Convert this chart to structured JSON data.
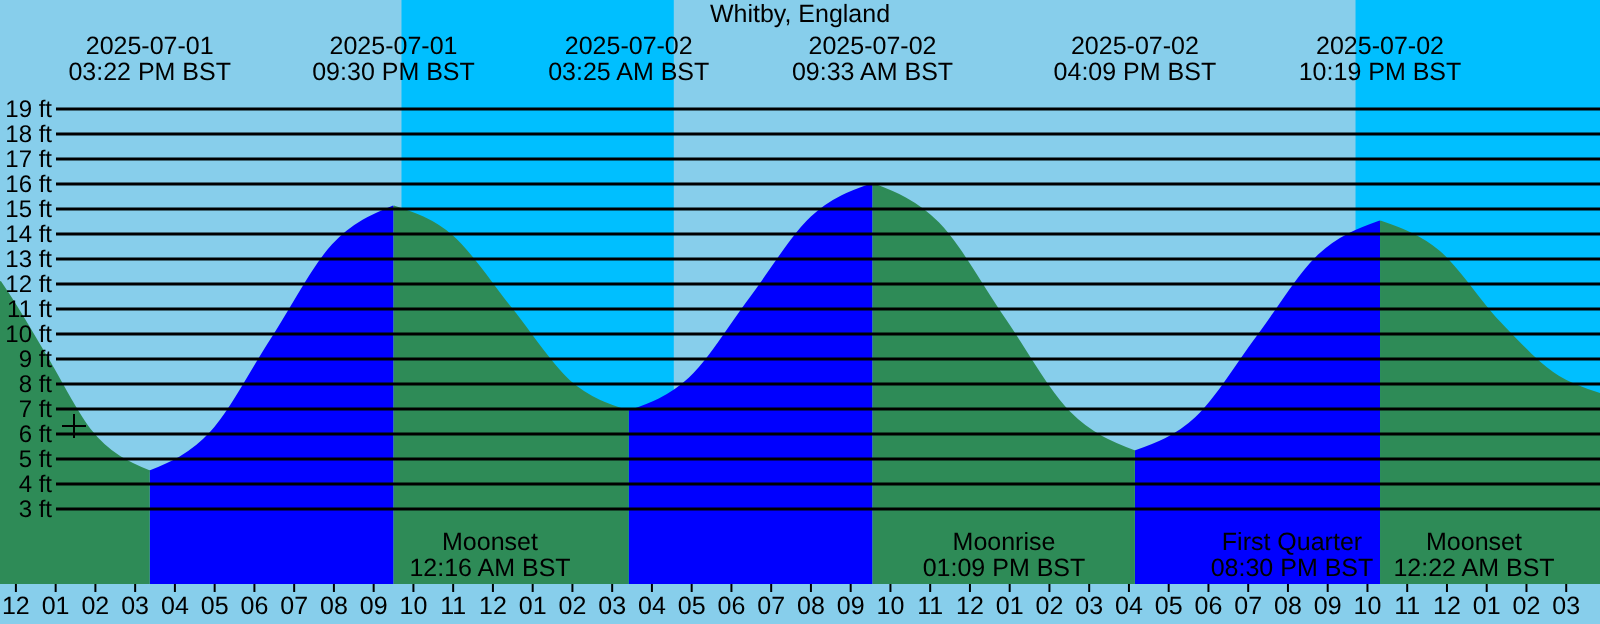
{
  "chart_data": {
    "type": "area",
    "title": "Whitby, England",
    "x": [
      "2025-07-01T11:36",
      "2025-07-01T11:51",
      "2025-07-01T12:48",
      "2025-07-01T13:51",
      "2025-07-01T15:22",
      "2025-07-01T16:54",
      "2025-07-01T18:26",
      "2025-07-01T19:58",
      "2025-07-01T21:30",
      "2025-07-01T22:59",
      "2025-07-02T00:28",
      "2025-07-02T01:56",
      "2025-07-02T03:25",
      "2025-07-02T04:57",
      "2025-07-02T06:29",
      "2025-07-02T08:01",
      "2025-07-02T09:33",
      "2025-07-02T11:12",
      "2025-07-02T12:51",
      "2025-07-02T14:30",
      "2025-07-02T16:09",
      "2025-07-02T17:41",
      "2025-07-02T19:14",
      "2025-07-02T20:47",
      "2025-07-02T22:19",
      "2025-07-02T23:48",
      "2025-07-03T01:18",
      "2025-07-03T02:48",
      "2025-07-03T03:51"
    ],
    "series": [
      {
        "color": "#0000ff",
        "values": [
          null,
          null,
          null,
          null,
          4.5,
          6.05,
          9.8,
          13.55,
          15.1,
          null,
          null,
          null,
          6.9,
          8.23,
          11.45,
          14.67,
          16.0,
          null,
          null,
          null,
          5.3,
          6.64,
          9.9,
          13.16,
          14.5,
          null,
          null,
          null,
          null
        ]
      },
      {
        "color": "#2e8b57",
        "values": [
          12.1,
          11.5,
          9.0,
          6.2,
          4.5,
          null,
          null,
          null,
          15.1,
          13.9,
          11.0,
          8.1,
          6.9,
          null,
          null,
          null,
          16.0,
          14.44,
          10.65,
          6.87,
          5.3,
          null,
          null,
          null,
          14.5,
          13.3,
          10.5,
          8.3,
          7.6
        ]
      }
    ],
    "xlim": [
      "2025-07-01T11:36",
      "2025-07-03T03:51"
    ],
    "xticks": [
      {
        "value": "2025-07-01T12:00",
        "label": "12"
      },
      {
        "value": "2025-07-01T13:00",
        "label": "01"
      },
      {
        "value": "2025-07-01T14:00",
        "label": "02"
      },
      {
        "value": "2025-07-01T15:00",
        "label": "03"
      },
      {
        "value": "2025-07-01T16:00",
        "label": "04"
      },
      {
        "value": "2025-07-01T17:00",
        "label": "05"
      },
      {
        "value": "2025-07-01T18:00",
        "label": "06"
      },
      {
        "value": "2025-07-01T19:00",
        "label": "07"
      },
      {
        "value": "2025-07-01T20:00",
        "label": "08"
      },
      {
        "value": "2025-07-01T21:00",
        "label": "09"
      },
      {
        "value": "2025-07-01T22:00",
        "label": "10"
      },
      {
        "value": "2025-07-01T23:00",
        "label": "11"
      },
      {
        "value": "2025-07-02T00:00",
        "label": "12"
      },
      {
        "value": "2025-07-02T01:00",
        "label": "01"
      },
      {
        "value": "2025-07-02T02:00",
        "label": "02"
      },
      {
        "value": "2025-07-02T03:00",
        "label": "03"
      },
      {
        "value": "2025-07-02T04:00",
        "label": "04"
      },
      {
        "value": "2025-07-02T05:00",
        "label": "05"
      },
      {
        "value": "2025-07-02T06:00",
        "label": "06"
      },
      {
        "value": "2025-07-02T07:00",
        "label": "07"
      },
      {
        "value": "2025-07-02T08:00",
        "label": "08"
      },
      {
        "value": "2025-07-02T09:00",
        "label": "09"
      },
      {
        "value": "2025-07-02T10:00",
        "label": "10"
      },
      {
        "value": "2025-07-02T11:00",
        "label": "11"
      },
      {
        "value": "2025-07-02T12:00",
        "label": "12"
      },
      {
        "value": "2025-07-02T13:00",
        "label": "01"
      },
      {
        "value": "2025-07-02T14:00",
        "label": "02"
      },
      {
        "value": "2025-07-02T15:00",
        "label": "03"
      },
      {
        "value": "2025-07-02T16:00",
        "label": "04"
      },
      {
        "value": "2025-07-02T17:00",
        "label": "05"
      },
      {
        "value": "2025-07-02T18:00",
        "label": "06"
      },
      {
        "value": "2025-07-02T19:00",
        "label": "07"
      },
      {
        "value": "2025-07-02T20:00",
        "label": "08"
      },
      {
        "value": "2025-07-02T21:00",
        "label": "09"
      },
      {
        "value": "2025-07-02T22:00",
        "label": "10"
      },
      {
        "value": "2025-07-02T23:00",
        "label": "11"
      },
      {
        "value": "2025-07-03T00:00",
        "label": "12"
      },
      {
        "value": "2025-07-03T01:00",
        "label": "01"
      },
      {
        "value": "2025-07-03T02:00",
        "label": "02"
      },
      {
        "value": "2025-07-03T03:00",
        "label": "03"
      }
    ],
    "x2lim": [
      "2025-07-01T11:36",
      "2025-07-03T03:51"
    ],
    "x2ticks": [
      {
        "value": "2025-07-01T15:22",
        "label": "2025-07-01\n03:22 PM BST"
      },
      {
        "value": "2025-07-01T21:30",
        "label": "2025-07-01\n09:30 PM BST"
      },
      {
        "value": "2025-07-02T03:25",
        "label": "2025-07-02\n03:25 AM BST"
      },
      {
        "value": "2025-07-02T09:33",
        "label": "2025-07-02\n09:33 AM BST"
      },
      {
        "value": "2025-07-02T16:09",
        "label": "2025-07-02\n04:09 PM BST"
      },
      {
        "value": "2025-07-02T22:19",
        "label": "2025-07-02\n10:19 PM BST"
      }
    ],
    "ylim": [
      0,
      23.36
    ],
    "yticks": [
      {
        "value": 3,
        "label": "3 ft"
      },
      {
        "value": 4,
        "label": "4 ft"
      },
      {
        "value": 5,
        "label": "5 ft"
      },
      {
        "value": 6,
        "label": "6 ft"
      },
      {
        "value": 7,
        "label": "7 ft"
      },
      {
        "value": 8,
        "label": "8 ft"
      },
      {
        "value": 9,
        "label": "9 ft"
      },
      {
        "value": 10,
        "label": "10 ft"
      },
      {
        "value": 11,
        "label": "11 ft"
      },
      {
        "value": 12,
        "label": "12 ft"
      },
      {
        "value": 13,
        "label": "13 ft"
      },
      {
        "value": 14,
        "label": "14 ft"
      },
      {
        "value": 15,
        "label": "15 ft"
      },
      {
        "value": 16,
        "label": "16 ft"
      },
      {
        "value": 17,
        "label": "17 ft"
      },
      {
        "value": 18,
        "label": "18 ft"
      },
      {
        "value": 19,
        "label": "19 ft"
      }
    ],
    "grid": "y",
    "bands": [
      {
        "axis": "x",
        "from": "2025-07-01T21:42",
        "to": "2025-07-02T04:33",
        "color": "#00bfff"
      },
      {
        "axis": "x",
        "from": "2025-07-02T21:42",
        "to": "2025-07-03T03:51",
        "color": "#00bfff"
      }
    ],
    "annotations": [
      "Moonset\n12:16 AM BST",
      "Moonrise\n01:09 PM BST",
      "First Quarter\n08:30 PM BST",
      "Moonset\n12:22 AM BST"
    ]
  }
}
